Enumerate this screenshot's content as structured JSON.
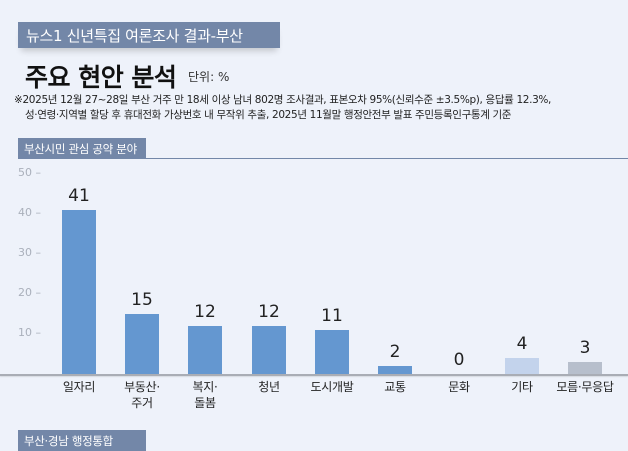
{
  "header": {
    "banner": "뉴스1 신년특집 여론조사 결과-부산",
    "title": "주요 현안 분석",
    "unit": "단위: %",
    "note_line1": "※2025년 12월 27~28일 부산 거주 만 18세 이상 남녀 802명 조사결과, 표본오차 95%(신뢰수준 ±3.5%p), 응답률 12.3%,",
    "note_line2": "성·연령·지역별 할당 후 휴대전화 가상번호 내 무작위 추출,  2025년 11월말 행정안전부 발표 주민등록인구통계 기준"
  },
  "section": {
    "label": "부산시민 관심 공약 분야",
    "next_label": "부산·경남 행정통합"
  },
  "colors": {
    "primary_bar": "#6497d0",
    "other_bar": "#c3d3ec",
    "unknown_bar": "#b7bfcc",
    "banner": "#7387a8"
  },
  "chart_data": {
    "type": "bar",
    "title": "부산시민 관심 공약 분야",
    "xlabel": "",
    "ylabel": "",
    "unit": "%",
    "ylim": [
      0,
      50
    ],
    "yticks": [
      10,
      20,
      30,
      40,
      50
    ],
    "grid": false,
    "legend": null,
    "categories": [
      "일자리",
      "부동산·주거",
      "복지·돌봄",
      "청년",
      "도시개발",
      "교통",
      "문화",
      "기타",
      "모름·무응답"
    ],
    "category_lines": [
      [
        "일자리"
      ],
      [
        "부동산·",
        "주거"
      ],
      [
        "복지·",
        "돌봄"
      ],
      [
        "청년"
      ],
      [
        "도시개발"
      ],
      [
        "교통"
      ],
      [
        "문화"
      ],
      [
        "기타"
      ],
      [
        "모름·무응답"
      ]
    ],
    "values": [
      41,
      15,
      12,
      12,
      11,
      2,
      0,
      4,
      3
    ],
    "value_labels": [
      "41",
      "15",
      "12",
      "12",
      "11",
      "2",
      "0",
      "4",
      "3"
    ]
  }
}
